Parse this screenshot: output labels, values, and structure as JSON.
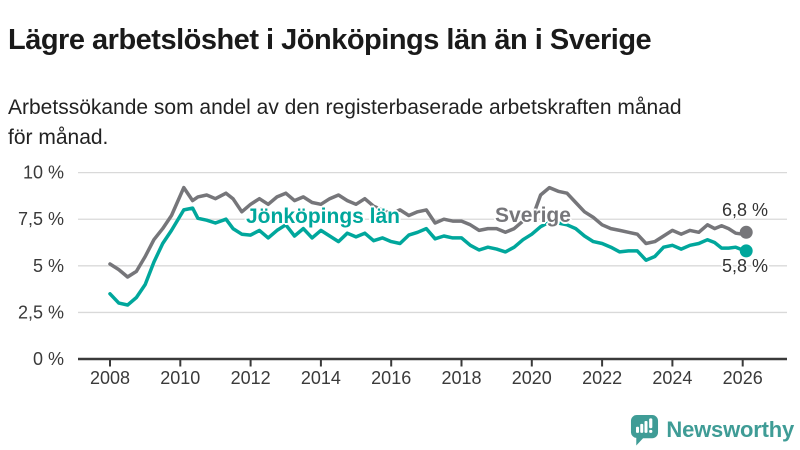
{
  "page": {
    "title": "Lägre arbetslöshet i Jönköpings län än i Sverige",
    "subtitle_lines": [
      "Arbetssökande som andel av den registerbaserade arbetskraften månad",
      "för månad."
    ]
  },
  "branding": {
    "logo_text": "Newsworthy",
    "logo_icon": "speech-bubble-bar-chart-exclamation-icon",
    "brand_color": "#3f9c96"
  },
  "chart_data": {
    "type": "line",
    "unit": "%",
    "title": "Lägre arbetslöshet i Jönköpings län än i Sverige",
    "subtitle": "Arbetssökande som andel av den registerbaserade arbetskraften månad för månad.",
    "grid": "horizontal",
    "legend_position": "inline-labels",
    "axis_color": "#3a3a3a",
    "grid_color": "#d9d9d9",
    "end_label_color": "#333333",
    "ylim": [
      0,
      10
    ],
    "xlim": [
      2007.2,
      2026.6
    ],
    "yticks": [
      0,
      2.5,
      5,
      7.5,
      10
    ],
    "ytick_labels": [
      "0 %",
      "2,5 %",
      "5 %",
      "7,5 %",
      "10 %"
    ],
    "xticks": [
      2008,
      2010,
      2012,
      2014,
      2016,
      2018,
      2020,
      2022,
      2024,
      2026
    ],
    "xtick_labels": [
      "2008",
      "2010",
      "2012",
      "2014",
      "2016",
      "2018",
      "2020",
      "2022",
      "2024",
      "2026"
    ],
    "x": [
      2008.0,
      2008.25,
      2008.5,
      2008.75,
      2009.0,
      2009.25,
      2009.5,
      2009.75,
      2010.1,
      2010.35,
      2010.5,
      2010.75,
      2011.0,
      2011.3,
      2011.5,
      2011.75,
      2012.0,
      2012.25,
      2012.5,
      2012.75,
      2013.0,
      2013.25,
      2013.5,
      2013.75,
      2014.0,
      2014.25,
      2014.5,
      2014.75,
      2015.0,
      2015.25,
      2015.5,
      2015.75,
      2016.0,
      2016.25,
      2016.5,
      2016.75,
      2017.0,
      2017.25,
      2017.5,
      2017.75,
      2018.0,
      2018.25,
      2018.5,
      2018.75,
      2019.0,
      2019.25,
      2019.5,
      2019.75,
      2020.0,
      2020.25,
      2020.5,
      2020.75,
      2021.0,
      2021.25,
      2021.5,
      2021.75,
      2022.0,
      2022.25,
      2022.5,
      2022.75,
      2023.0,
      2023.25,
      2023.5,
      2023.75,
      2024.0,
      2024.25,
      2024.5,
      2024.75,
      2025.0,
      2025.2,
      2025.4,
      2025.6,
      2025.8,
      2026.0,
      2026.1
    ],
    "series": [
      {
        "name": "Sverige",
        "slug": "sverige",
        "color": "#76767a",
        "end_value": 6.8,
        "end_label": "6,8 %",
        "values": [
          5.1,
          4.8,
          4.4,
          4.7,
          5.5,
          6.4,
          7.0,
          7.7,
          9.2,
          8.5,
          8.7,
          8.8,
          8.6,
          8.9,
          8.6,
          7.9,
          8.3,
          8.6,
          8.3,
          8.7,
          8.9,
          8.5,
          8.7,
          8.4,
          8.3,
          8.6,
          8.8,
          8.5,
          8.3,
          8.6,
          8.2,
          8.0,
          7.8,
          8.0,
          7.7,
          7.9,
          8.0,
          7.3,
          7.5,
          7.4,
          7.4,
          7.2,
          6.9,
          7.0,
          7.0,
          6.8,
          7.0,
          7.4,
          7.5,
          8.8,
          9.2,
          9.0,
          8.9,
          8.4,
          7.9,
          7.6,
          7.2,
          7.0,
          6.9,
          6.8,
          6.7,
          6.2,
          6.3,
          6.6,
          6.9,
          6.7,
          6.9,
          6.8,
          7.2,
          7.0,
          7.15,
          7.0,
          6.75,
          6.7,
          6.8
        ]
      },
      {
        "name": "Jönköpings län",
        "slug": "jonkopings-lan",
        "color": "#00a79c",
        "end_value": 5.8,
        "end_label": "5,8 %",
        "values": [
          3.5,
          3.0,
          2.9,
          3.3,
          4.0,
          5.2,
          6.2,
          6.9,
          8.0,
          8.1,
          7.55,
          7.45,
          7.3,
          7.5,
          7.0,
          6.7,
          6.65,
          6.9,
          6.5,
          6.9,
          7.2,
          6.6,
          7.0,
          6.5,
          6.9,
          6.6,
          6.3,
          6.75,
          6.55,
          6.75,
          6.35,
          6.5,
          6.3,
          6.2,
          6.65,
          6.8,
          7.0,
          6.45,
          6.6,
          6.5,
          6.5,
          6.1,
          5.85,
          6.0,
          5.9,
          5.75,
          6.0,
          6.4,
          6.7,
          7.1,
          7.35,
          7.3,
          7.2,
          7.0,
          6.6,
          6.3,
          6.2,
          6.0,
          5.75,
          5.8,
          5.8,
          5.3,
          5.5,
          6.0,
          6.1,
          5.9,
          6.1,
          6.2,
          6.4,
          6.25,
          5.95,
          5.95,
          6.0,
          5.85,
          5.8
        ]
      }
    ]
  }
}
